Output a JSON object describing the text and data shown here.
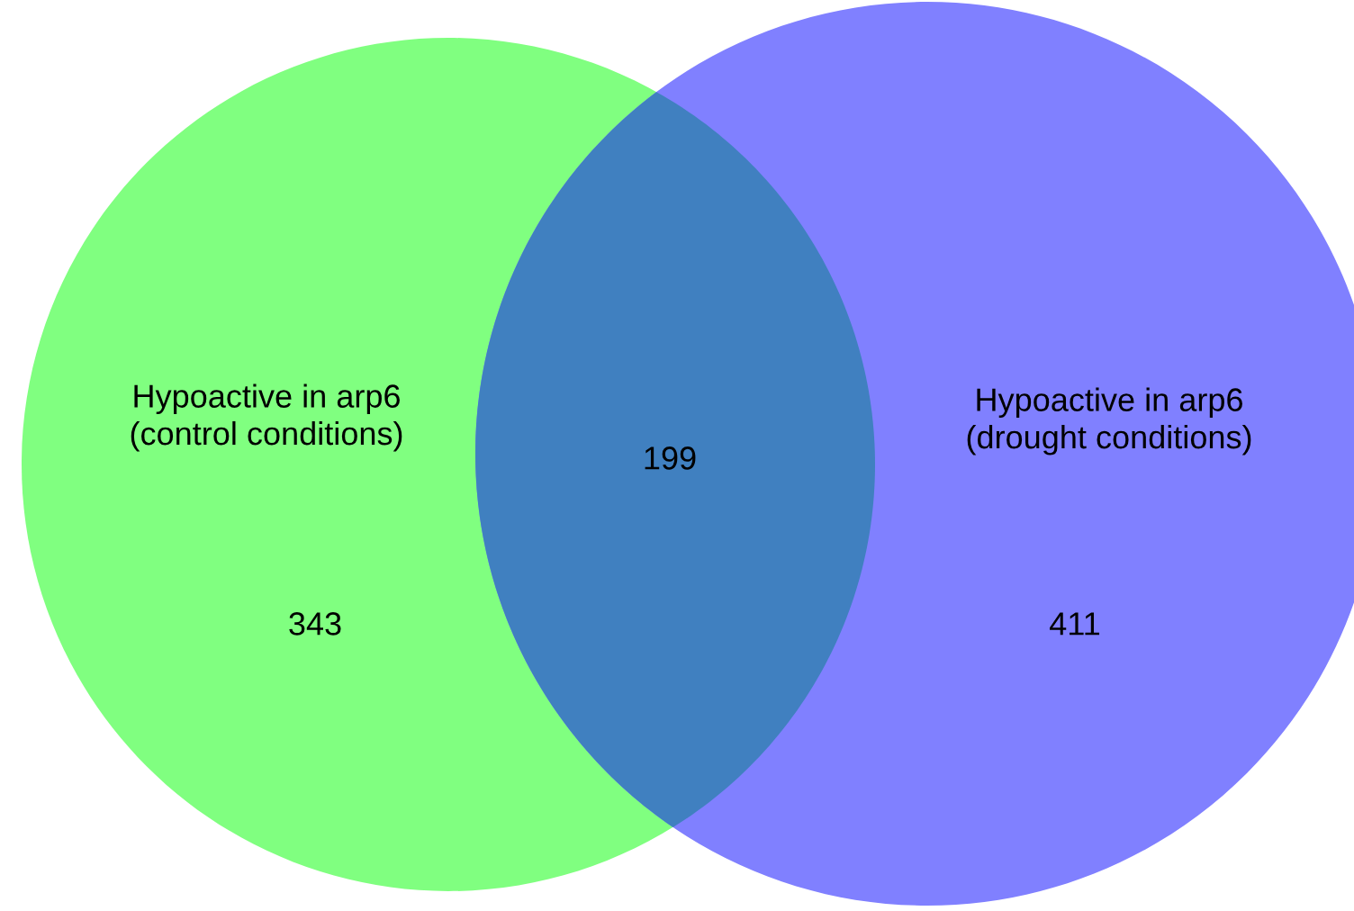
{
  "chart_data": {
    "type": "other",
    "categories": [
      "Hypoactive in arp6\n(control conditions)",
      "Hypoactive in arp6\n(drought conditions)"
    ],
    "values": [
      343,
      411
    ],
    "data_labels": true,
    "annotations": [
      "199"
    ],
    "colors": [
      "#80ff80",
      "#8080ff"
    ]
  }
}
